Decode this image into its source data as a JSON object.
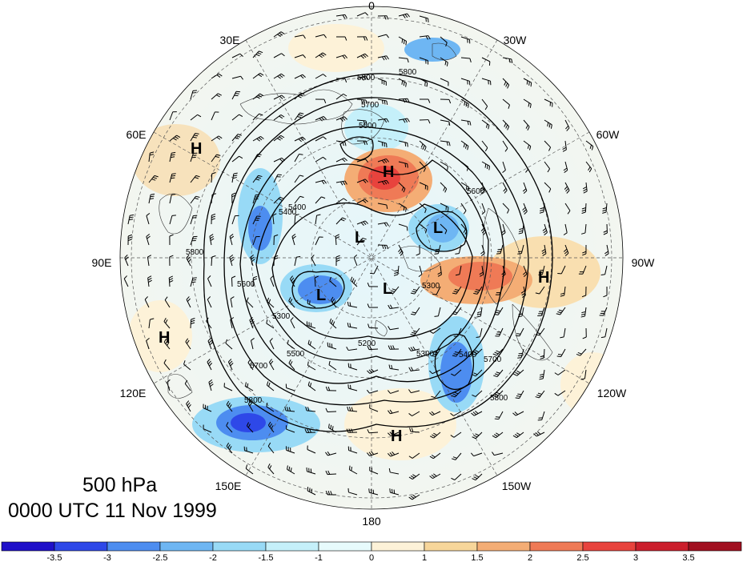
{
  "map": {
    "projection": "north polar stereographic",
    "longitude_labels": [
      "0",
      "30W",
      "60W",
      "90W",
      "120W",
      "150W",
      "180",
      "150E",
      "120E",
      "90E",
      "60E",
      "30E"
    ],
    "contour_labels": [
      "5800",
      "5800",
      "5700",
      "5600",
      "5600",
      "5400",
      "5800",
      "5600",
      "5300",
      "5200",
      "5300",
      "5400",
      "5500",
      "5700",
      "5800",
      "5800",
      "5700",
      "5300",
      "5400"
    ],
    "pressure_centers": {
      "highs": [
        "H",
        "H",
        "H",
        "H",
        "H"
      ],
      "lows": [
        "L",
        "L",
        "L",
        "L"
      ]
    }
  },
  "caption": {
    "level": "500 hPa",
    "time": "0000 UTC 11 Nov 1999"
  },
  "colorbar": {
    "labels": [
      "-3.5",
      "-3",
      "-2.5",
      "-2",
      "-1.5",
      "-1",
      "0",
      "1",
      "1.5",
      "2",
      "2.5",
      "3",
      "3.5"
    ],
    "colors": [
      "#1f10c9",
      "#2e48e8",
      "#4d8df0",
      "#6eb6f3",
      "#98daf6",
      "#c5f0fa",
      "#e7fbfc",
      "#fdf2d8",
      "#f7d69a",
      "#f4ad75",
      "#ef7a56",
      "#e8433d",
      "#cb1e2c",
      "#a11020"
    ]
  }
}
